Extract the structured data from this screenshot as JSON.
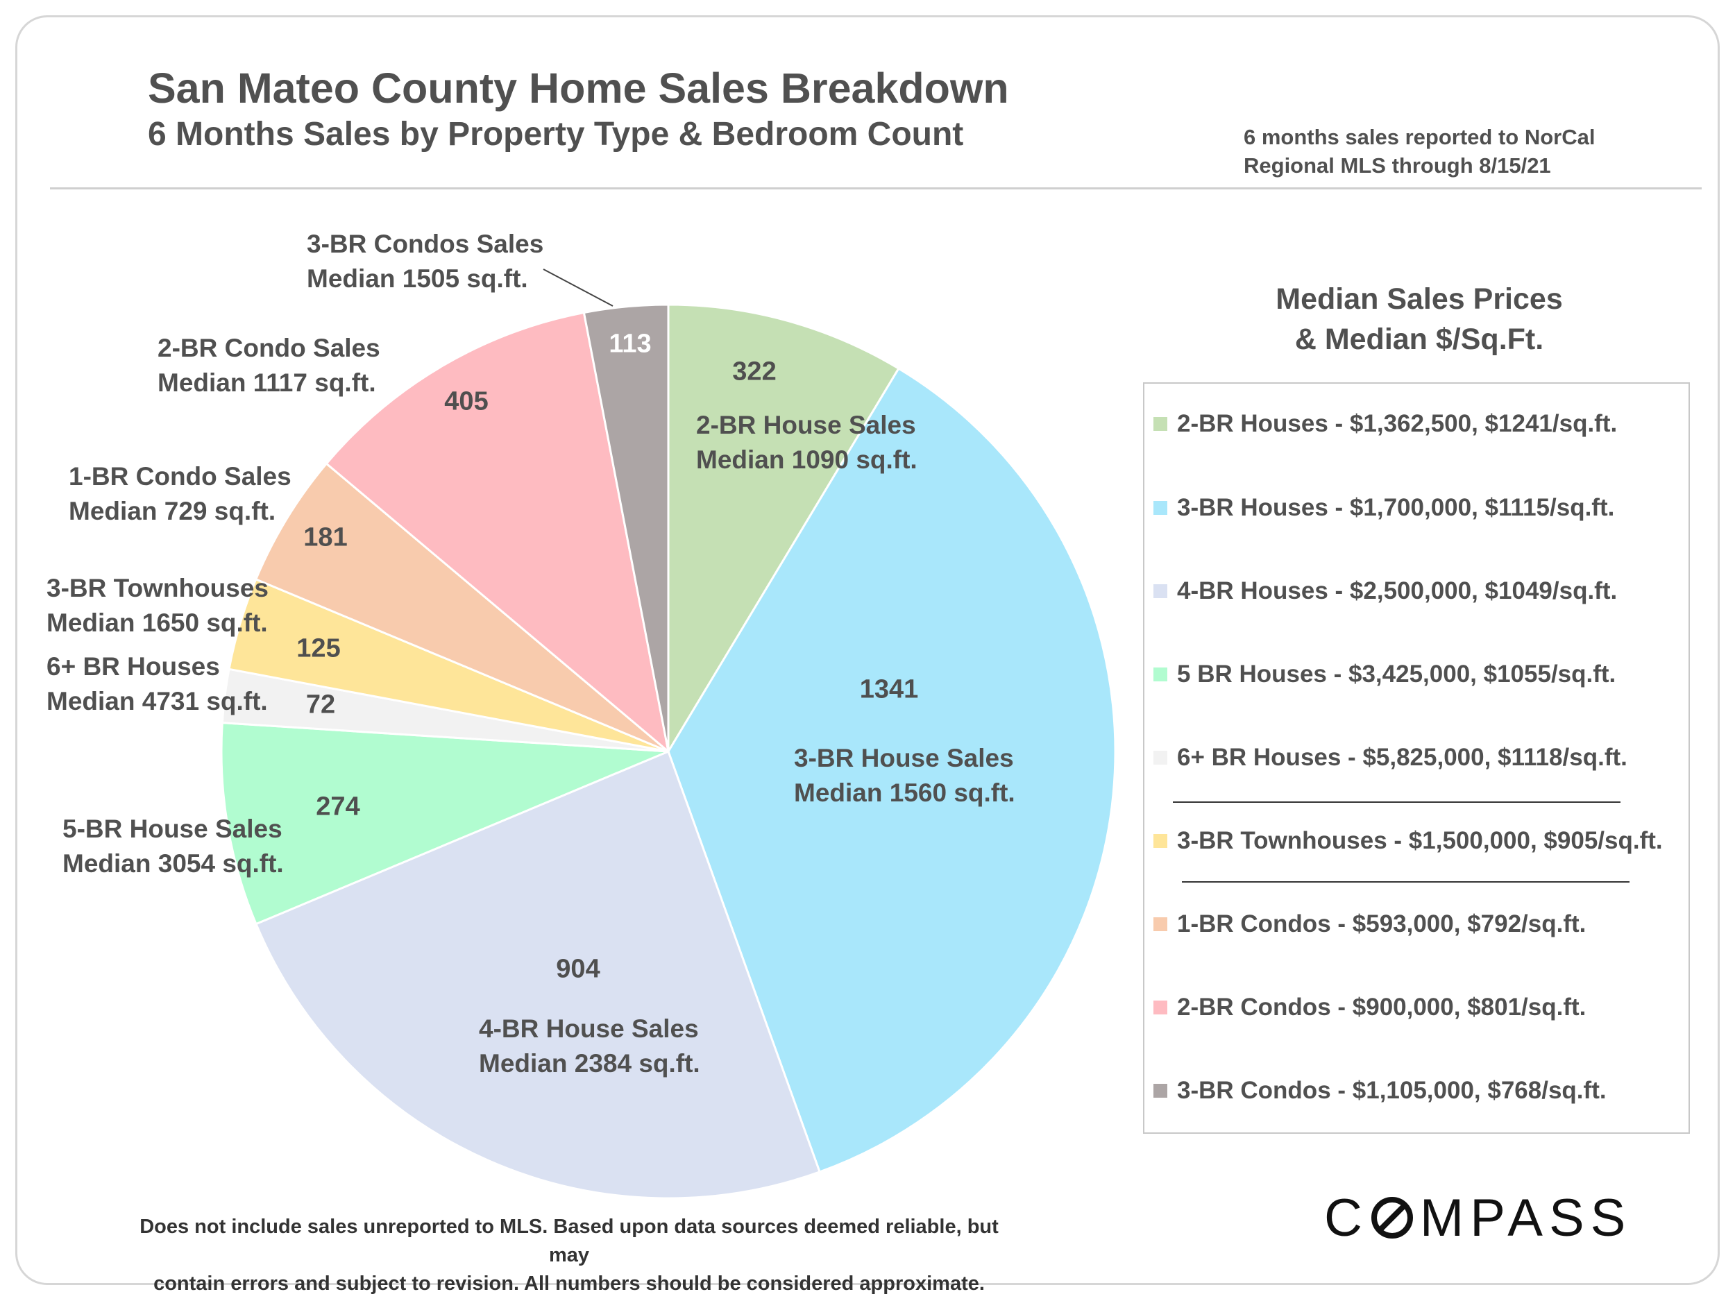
{
  "header": {
    "title": "San Mateo County Home Sales Breakdown",
    "subtitle": "6 Months Sales by Property Type & Bedroom Count",
    "source_line1": "6 months sales reported to NorCal",
    "source_line2": "Regional MLS through 8/15/21"
  },
  "chart_data": {
    "type": "pie",
    "slices": [
      {
        "value": 322,
        "color": "#c5e0b4",
        "label1": "2-BR House Sales",
        "label2": "Median 1090 sq.ft."
      },
      {
        "value": 1341,
        "color": "#a9e7fb",
        "label1": "3-BR House Sales",
        "label2": "Median 1560 sq.ft."
      },
      {
        "value": 904,
        "color": "#dae1f2",
        "label1": "4-BR House Sales",
        "label2": "Median 2384 sq.ft."
      },
      {
        "value": 274,
        "color": "#b1fcd0",
        "label1": "5-BR House Sales",
        "label2": "Median 3054 sq.ft."
      },
      {
        "value": 72,
        "color": "#f2f2f2",
        "label1": "6+ BR Houses",
        "label2": "Median 4731 sq.ft."
      },
      {
        "value": 125,
        "color": "#fee599",
        "label1": "3-BR Townhouses",
        "label2": "Median 1650 sq.ft."
      },
      {
        "value": 181,
        "color": "#f8cbad",
        "label1": "1-BR Condo Sales",
        "label2": "Median 729 sq.ft."
      },
      {
        "value": 405,
        "color": "#febbc1",
        "label1": "2-BR Condo Sales",
        "label2": "Median 1117 sq.ft."
      },
      {
        "value": 113,
        "color": "#aca5a5",
        "label1": "3-BR Condos Sales",
        "label2": "Median 1505 sq.ft."
      }
    ]
  },
  "legend": {
    "title_line1": "Median Sales Prices",
    "title_line2": "& Median $/Sq.Ft.",
    "items": [
      {
        "text": "2-BR Houses - $1,362,500, $1241/sq.ft.",
        "color": "#c5e0b4"
      },
      {
        "text": "3-BR Houses - $1,700,000, $1115/sq.ft.",
        "color": "#a9e7fb"
      },
      {
        "text": "4-BR Houses - $2,500,000, $1049/sq.ft.",
        "color": "#dae1f2"
      },
      {
        "text": "5 BR Houses - $3,425,000, $1055/sq.ft.",
        "color": "#b1fcd0"
      },
      {
        "text": "6+ BR Houses - $5,825,000, $1118/sq.ft.",
        "color": "#f2f2f2"
      },
      {
        "text": "3-BR Townhouses - $1,500,000, $905/sq.ft.",
        "color": "#fee599"
      },
      {
        "text": "1-BR Condos - $593,000, $792/sq.ft.",
        "color": "#f8cbad"
      },
      {
        "text": "2-BR Condos - $900,000, $801/sq.ft.",
        "color": "#febbc1"
      },
      {
        "text": "3-BR Condos - $1,105,000, $768/sq.ft.",
        "color": "#aca5a5"
      }
    ]
  },
  "footnote": {
    "line1": "Does not include sales unreported to MLS.  Based upon data sources deemed reliable, but may",
    "line2": "contain errors and subject to revision. All numbers should be considered approximate."
  },
  "brand": {
    "logo_pre": "C",
    "logo_post": "MPASS"
  }
}
